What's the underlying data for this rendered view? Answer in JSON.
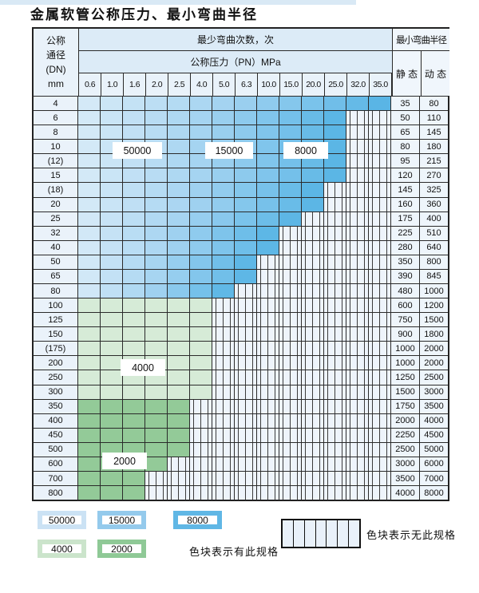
{
  "title": "金属软管公称压力、最小弯曲半径",
  "table": {
    "dn_header_lines": [
      "公称",
      "通径",
      "(DN)",
      "mm"
    ],
    "bend_times_header": "最少弯曲次数，次",
    "pressure_header": "公称压力（PN）MPa",
    "radius_header": "最小弯曲半径",
    "static_header": "静 态",
    "dynamic_header": "动 态",
    "pressure_columns": [
      "0.6",
      "1.0",
      "1.6",
      "2.0",
      "2.5",
      "4.0",
      "5.0",
      "6.3",
      "10.0",
      "15.0",
      "20.0",
      "25.0",
      "32.0",
      "35.0"
    ],
    "rows": [
      {
        "dn": "4",
        "colored": 14,
        "zone": "blue",
        "static": "35",
        "dynamic": "80"
      },
      {
        "dn": "6",
        "colored": 12,
        "zone": "blue",
        "static": "50",
        "dynamic": "110"
      },
      {
        "dn": "8",
        "colored": 12,
        "zone": "blue",
        "static": "65",
        "dynamic": "145"
      },
      {
        "dn": "10",
        "colored": 12,
        "zone": "blue",
        "static": "80",
        "dynamic": "180"
      },
      {
        "dn": "(12)",
        "colored": 12,
        "zone": "blue",
        "static": "95",
        "dynamic": "215"
      },
      {
        "dn": "15",
        "colored": 12,
        "zone": "blue",
        "static": "120",
        "dynamic": "270"
      },
      {
        "dn": "(18)",
        "colored": 11,
        "zone": "blue",
        "static": "145",
        "dynamic": "325"
      },
      {
        "dn": "20",
        "colored": 11,
        "zone": "blue",
        "static": "160",
        "dynamic": "360"
      },
      {
        "dn": "25",
        "colored": 10,
        "zone": "blue",
        "static": "175",
        "dynamic": "400"
      },
      {
        "dn": "32",
        "colored": 9,
        "zone": "blue",
        "static": "225",
        "dynamic": "510"
      },
      {
        "dn": "40",
        "colored": 9,
        "zone": "blue",
        "static": "280",
        "dynamic": "640"
      },
      {
        "dn": "50",
        "colored": 8,
        "zone": "blue",
        "static": "350",
        "dynamic": "800"
      },
      {
        "dn": "65",
        "colored": 8,
        "zone": "blue",
        "static": "390",
        "dynamic": "845"
      },
      {
        "dn": "80",
        "colored": 7,
        "zone": "blue",
        "static": "480",
        "dynamic": "1000"
      },
      {
        "dn": "100",
        "colored": 6,
        "zone": "green_light",
        "static": "600",
        "dynamic": "1200"
      },
      {
        "dn": "125",
        "colored": 6,
        "zone": "green_light",
        "static": "750",
        "dynamic": "1500"
      },
      {
        "dn": "150",
        "colored": 6,
        "zone": "green_light",
        "static": "900",
        "dynamic": "1800"
      },
      {
        "dn": "(175)",
        "colored": 6,
        "zone": "green_light",
        "static": "1000",
        "dynamic": "2000"
      },
      {
        "dn": "200",
        "colored": 6,
        "zone": "green_light",
        "static": "1000",
        "dynamic": "2000"
      },
      {
        "dn": "250",
        "colored": 6,
        "zone": "green_light",
        "static": "1250",
        "dynamic": "2500"
      },
      {
        "dn": "300",
        "colored": 6,
        "zone": "green_light",
        "static": "1500",
        "dynamic": "3000"
      },
      {
        "dn": "350",
        "colored": 5,
        "zone": "green_dark",
        "static": "1750",
        "dynamic": "3500"
      },
      {
        "dn": "400",
        "colored": 5,
        "zone": "green_dark",
        "static": "2000",
        "dynamic": "4000"
      },
      {
        "dn": "450",
        "colored": 5,
        "zone": "green_dark",
        "static": "2250",
        "dynamic": "4500"
      },
      {
        "dn": "500",
        "colored": 5,
        "zone": "green_dark",
        "static": "2500",
        "dynamic": "5000"
      },
      {
        "dn": "600",
        "colored": 4,
        "zone": "green_dark",
        "static": "3000",
        "dynamic": "6000"
      },
      {
        "dn": "700",
        "colored": 3,
        "zone": "green_dark",
        "static": "3500",
        "dynamic": "7000"
      },
      {
        "dn": "800",
        "colored": 3,
        "zone": "green_dark",
        "static": "4000",
        "dynamic": "8000"
      }
    ],
    "cycle_labels": [
      "50000",
      "15000",
      "8000",
      "4000",
      "2000"
    ]
  },
  "legend": {
    "chips": [
      {
        "label": "50000",
        "color": "#cbe2f4"
      },
      {
        "label": "15000",
        "color": "#94caec"
      },
      {
        "label": "8000",
        "color": "#60b7e5"
      },
      {
        "label": "4000",
        "color": "#cbe4cb"
      },
      {
        "label": "2000",
        "color": "#8fc996"
      }
    ],
    "has_spec_text": "色块表示有此规格",
    "no_spec_text": "色块表示无此规格"
  },
  "colors": {
    "blue_stops": [
      "#d8ebf8",
      "#a6d4f1",
      "#76c1ea",
      "#55b3e4"
    ],
    "green_light": "#d6ebd7",
    "green_dark": "#93ca98",
    "stripe_bg": "#eef4fb",
    "stripe_line": "#3b3b3b"
  }
}
